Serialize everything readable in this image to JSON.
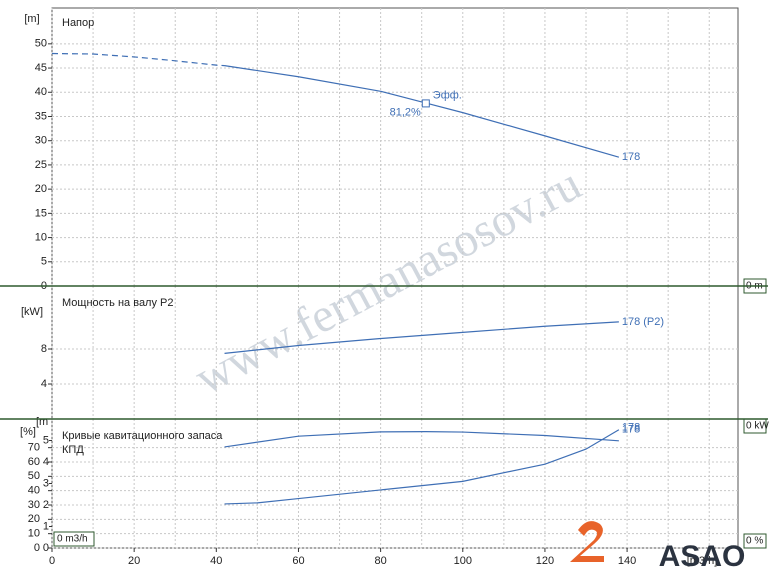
{
  "chart_data": [
    {
      "type": "line",
      "title": "Напор",
      "y_label": "[m]",
      "xlim": [
        0,
        167
      ],
      "ylim": [
        0,
        57.4
      ],
      "yticks": [
        0,
        5,
        10,
        15,
        20,
        25,
        30,
        35,
        40,
        45,
        50
      ],
      "series": [
        {
          "color": "#3f6fb5",
          "dashed": true,
          "x": [
            0,
            10,
            20,
            30,
            40,
            42
          ],
          "values": [
            48,
            47.9,
            47.3,
            46.5,
            45.6,
            45.5
          ]
        },
        {
          "name": "178",
          "color": "#3f6fb5",
          "x": [
            42,
            60,
            80,
            90,
            100,
            120,
            138
          ],
          "values": [
            45.5,
            43.2,
            40.2,
            38,
            35.8,
            31,
            26.6
          ]
        }
      ],
      "efficiency_point": {
        "x": 91,
        "y": 37.7,
        "label": "Эфф.",
        "efficiency": 81.2,
        "efficiency_label": "81,2%"
      },
      "readout": "0 m"
    },
    {
      "type": "line",
      "title": "Мощность на валу P2",
      "y_label": "[kW]",
      "xlim": [
        0,
        167
      ],
      "ylim": [
        0,
        15.2
      ],
      "yticks": [
        4,
        8
      ],
      "series": [
        {
          "name": "178 (P2)",
          "color": "#3f6fb5",
          "x": [
            42,
            60,
            80,
            100,
            120,
            138
          ],
          "values": [
            7.5,
            8.4,
            9.2,
            9.9,
            10.6,
            11.1
          ]
        }
      ],
      "readout": "0 kW"
    },
    {
      "type": "line",
      "titles": [
        "Кривые кавитационного запаса",
        "КПД"
      ],
      "y_label": "[%]",
      "y2_label": "[m",
      "xlim": [
        0,
        167
      ],
      "ylim": [
        0,
        90
      ],
      "y2lim": [
        0,
        6
      ],
      "yticks": [
        0,
        10,
        20,
        30,
        40,
        50,
        60,
        70
      ],
      "y2ticks": [
        0,
        1,
        2,
        3,
        4,
        5
      ],
      "xticks": [
        0,
        20,
        40,
        60,
        80,
        100,
        120,
        140
      ],
      "x_minor_ticks": [
        10,
        30,
        50,
        70,
        90,
        110,
        130,
        150,
        160
      ],
      "x_label": "[m3/h]",
      "series": [
        {
          "name": "178",
          "color": "#3f6fb5",
          "x": [
            42,
            60,
            80,
            91,
            100,
            120,
            138
          ],
          "values": [
            70.5,
            78,
            81,
            81.2,
            80.9,
            78.5,
            74.8
          ]
        },
        {
          "name": "178",
          "color": "#3f6fb5",
          "axis": "y2",
          "x": [
            42,
            50,
            60,
            80,
            100,
            120,
            130,
            138
          ],
          "values": [
            2.05,
            2.1,
            2.3,
            2.7,
            3.1,
            3.9,
            4.6,
            5.5
          ]
        }
      ],
      "readout": "0 %",
      "x_readout": "0 m3/h"
    }
  ],
  "watermark": "www.fermanasosov.ru",
  "logo": "ASAO"
}
